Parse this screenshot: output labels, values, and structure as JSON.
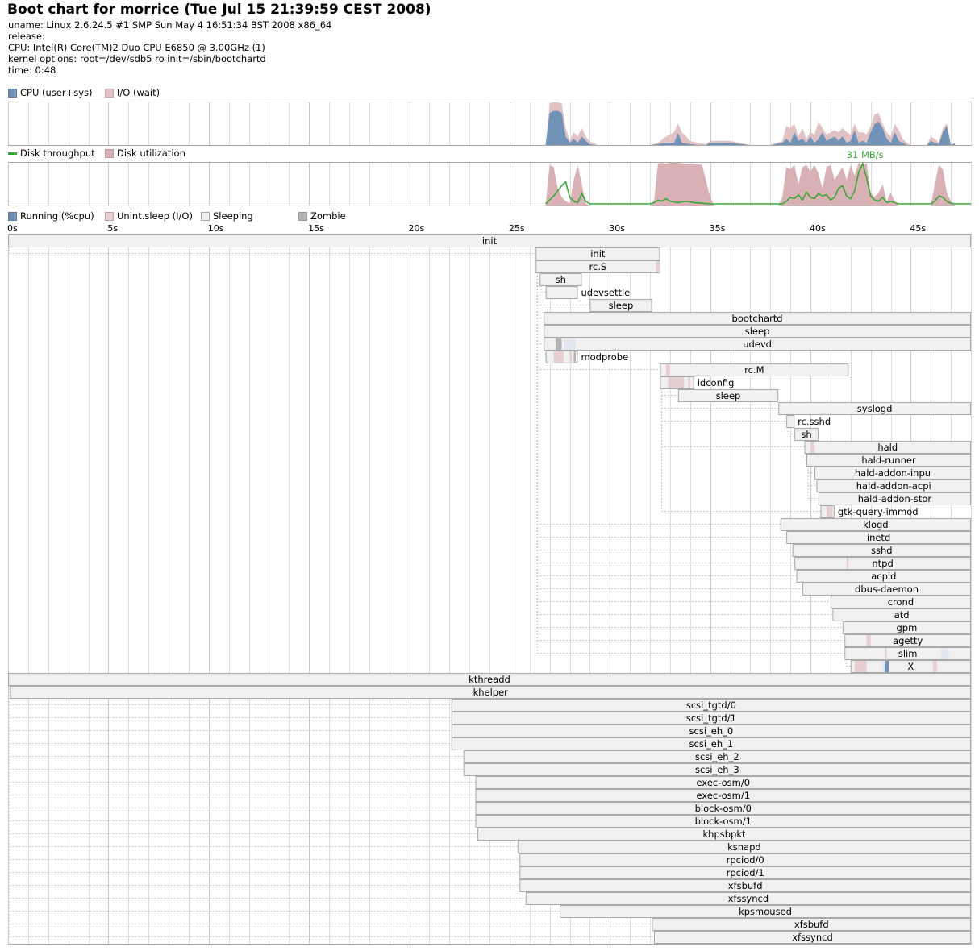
{
  "header": {
    "title": "Boot chart for morrice (Tue Jul 15 21:39:59 CEST 2008)",
    "uname": "uname: Linux 2.6.24.5 #1 SMP Sun May 4 16:51:34 BST 2008 x86_64",
    "release": "release:",
    "cpu": "CPU: Intel(R) Core(TM)2 Duo CPU     E6850  @ 3.00GHz (1)",
    "kernel": "kernel options: root=/dev/sdb5 ro init=/sbin/bootchartd",
    "time": "time: 0:48"
  },
  "colors": {
    "cpu": "#7193b8",
    "io": "#e1c2c4",
    "disk_util": "#d9b1b4",
    "disk_throughput": "#3aa83a",
    "running": "#6f8fb5",
    "unint": "#e6cfd1",
    "sleeping": "#f0f0f0",
    "zombie": "#b4b4b4",
    "border": "#a8a8a8",
    "grid": "#dcdcdc"
  },
  "legends": {
    "cpu": "CPU (user+sys)",
    "io": "I/O (wait)",
    "throughput": "Disk throughput",
    "utilization": "Disk utilization",
    "running": "Running (%cpu)",
    "unint": "Unint.sleep (I/O)",
    "sleeping": "Sleeping",
    "zombie": "Zombie"
  },
  "chart_data": {
    "type": "area",
    "x_range_s": [
      0,
      48
    ],
    "ticks": [
      "0s",
      "5s",
      "10s",
      "15s",
      "20s",
      "25s",
      "30s",
      "35s",
      "40s",
      "45s"
    ],
    "tick_values": [
      0,
      5,
      10,
      15,
      20,
      25,
      30,
      35,
      40,
      45
    ],
    "cpu": {
      "x": [
        26.8,
        27.0,
        27.2,
        27.4,
        27.6,
        27.8,
        28.0,
        28.2,
        28.4,
        28.6,
        28.8,
        29.0,
        29.2,
        29.4,
        29.6,
        29.8,
        30.0,
        31.0,
        32.0,
        32.4,
        32.8,
        33.2,
        33.4,
        33.6,
        34.0,
        34.4,
        34.8,
        35.0,
        36.0,
        37.0,
        37.2,
        37.6,
        38.0,
        38.6,
        38.8,
        39.0,
        39.2,
        39.4,
        39.6,
        39.8,
        40.0,
        40.2,
        40.4,
        40.6,
        40.8,
        41.0,
        41.2,
        41.4,
        41.6,
        41.8,
        42.0,
        42.2,
        42.4,
        42.6,
        42.8,
        43.0,
        43.2,
        43.4,
        43.6,
        43.8,
        44.0,
        44.2,
        44.4,
        44.6,
        44.8,
        45.0,
        45.2,
        45.4,
        45.6,
        45.8,
        46.0,
        46.2,
        46.4,
        46.6,
        46.8,
        47.0,
        47.2
      ],
      "user_sys": [
        0,
        0.75,
        0.8,
        0.8,
        0.75,
        0.2,
        0.05,
        0.15,
        0.05,
        0.2,
        0.1,
        0.02,
        0,
        0,
        0,
        0,
        0,
        0,
        0,
        0.02,
        0.05,
        0.05,
        0.28,
        0.05,
        0.02,
        0,
        0,
        0.05,
        0.05,
        0,
        0,
        0,
        0,
        0.05,
        0.15,
        0.05,
        0.3,
        0.1,
        0.15,
        0.05,
        0.2,
        0.05,
        0.15,
        0.3,
        0.1,
        0.15,
        0.2,
        0.1,
        0.2,
        0.05,
        0.1,
        0.35,
        0.05,
        0.1,
        0.05,
        0.3,
        0.5,
        0.55,
        0.4,
        0.15,
        0.05,
        0.3,
        0.1,
        0.05,
        0,
        0,
        0,
        0,
        0,
        0,
        0.1,
        0.05,
        0.02,
        0.3,
        0.45,
        0,
        0.04
      ],
      "io_wait": [
        0,
        0.98,
        1,
        1,
        0.98,
        0.4,
        0.1,
        0.3,
        0.2,
        0.4,
        0.2,
        0.08,
        0.05,
        0,
        0,
        0,
        0,
        0,
        0,
        0.05,
        0.2,
        0.3,
        0.5,
        0.3,
        0.1,
        0.05,
        0.02,
        0.1,
        0.1,
        0,
        0,
        0,
        0,
        0.1,
        0.45,
        0.4,
        0.5,
        0.2,
        0.4,
        0.15,
        0.3,
        0.25,
        0.55,
        0.4,
        0.25,
        0.3,
        0.35,
        0.3,
        0.4,
        0.3,
        0.25,
        0.5,
        0.3,
        0.3,
        0.25,
        0.45,
        0.72,
        0.75,
        0.5,
        0.3,
        0.2,
        0.5,
        0.35,
        0.15,
        0.05,
        0,
        0,
        0,
        0,
        0,
        0.2,
        0.15,
        0.05,
        0.4,
        0.5,
        0,
        0.05
      ]
    },
    "disk": {
      "max_label": "31 MB/s",
      "max_x": 42.6,
      "x": [
        26.8,
        27.0,
        27.2,
        27.4,
        27.6,
        27.8,
        28.0,
        28.2,
        28.4,
        28.6,
        28.8,
        29.0,
        29.2,
        29.4,
        29.6,
        29.8,
        30.0,
        31.0,
        32.0,
        32.2,
        32.4,
        32.6,
        32.8,
        33.0,
        33.4,
        33.8,
        34.2,
        34.6,
        35.0,
        35.2,
        36.0,
        38.4,
        38.6,
        38.8,
        39.0,
        39.2,
        39.4,
        39.6,
        39.8,
        40.0,
        40.2,
        40.4,
        40.6,
        40.8,
        41.0,
        41.2,
        41.4,
        41.6,
        41.8,
        42.0,
        42.2,
        42.4,
        42.6,
        42.8,
        43.0,
        43.2,
        43.4,
        43.6,
        43.8,
        44.0,
        44.2,
        44.4,
        44.6,
        44.8,
        45.0,
        46.0,
        46.2,
        46.4,
        46.6,
        46.8,
        47.0,
        47.2,
        48.0
      ],
      "utilization": [
        0,
        0.95,
        0.9,
        0.4,
        0.2,
        0.1,
        0.05,
        0.6,
        0.95,
        0.5,
        0.05,
        0,
        0,
        0,
        0,
        0,
        0,
        0,
        0,
        0.1,
        0.98,
        1,
        0.98,
        1,
        1,
        0.98,
        0.98,
        0.95,
        0.2,
        0,
        0,
        0,
        0.2,
        0.9,
        0.85,
        0.95,
        0.5,
        0.9,
        0.95,
        0.8,
        0.95,
        0.75,
        0.4,
        0.9,
        0.95,
        0.6,
        0.75,
        0.9,
        0.6,
        0.95,
        0.7,
        1,
        0.9,
        1,
        0.3,
        0.2,
        0.3,
        0.5,
        0.1,
        0.3,
        0.1,
        0,
        0,
        0,
        0,
        0,
        0.5,
        0.95,
        0.85,
        0.3,
        0.1,
        0,
        0
      ],
      "throughput_mbs": [
        0,
        3,
        6,
        10,
        14,
        17,
        5,
        2,
        1,
        8,
        2,
        0,
        0,
        0,
        0,
        0,
        0,
        0,
        0,
        1,
        3,
        2,
        4,
        2,
        1,
        2,
        1,
        0.5,
        0,
        0,
        0,
        0,
        0,
        2,
        5,
        4,
        7,
        3,
        9,
        5,
        4,
        8,
        6,
        7,
        3,
        5,
        12,
        14,
        6,
        4,
        10,
        24,
        31,
        20,
        6,
        3,
        2,
        5,
        1,
        2,
        1,
        0,
        0,
        0,
        0,
        0,
        2,
        6,
        5,
        2,
        0.5,
        0,
        0
      ]
    },
    "processes": [
      {
        "name": "init",
        "start": 0,
        "end": 48,
        "sleep": true,
        "label": "center"
      },
      {
        "name": "init",
        "start": 26.3,
        "end": 32.5,
        "parent": "init",
        "label": "center"
      },
      {
        "name": "rc.S",
        "start": 26.3,
        "end": 32.5,
        "parent": "init",
        "label": "center",
        "io": [
          [
            32.3,
            32.5
          ]
        ]
      },
      {
        "name": "sh",
        "start": 26.5,
        "end": 28.6,
        "parent": "rc.S",
        "label": "center"
      },
      {
        "name": "udevsettle",
        "start": 26.8,
        "end": 28.4,
        "parent": "sh",
        "label": "right"
      },
      {
        "name": "sleep",
        "start": 29.0,
        "end": 32.1,
        "parent": "rc.S",
        "label": "center"
      },
      {
        "name": "bootchartd",
        "start": 26.7,
        "end": 48,
        "parent": "init",
        "label": "center"
      },
      {
        "name": "sleep",
        "start": 26.7,
        "end": 48,
        "parent": "bootchartd",
        "label": "center"
      },
      {
        "name": "udevd",
        "start": 26.7,
        "end": 48,
        "parent": "init",
        "label": "center",
        "zombie": [
          [
            27.3,
            27.6
          ]
        ],
        "sleepmark": [
          [
            27.7,
            28.3
          ]
        ]
      },
      {
        "name": "modprobe",
        "start": 26.8,
        "end": 28.4,
        "parent": "udevd",
        "label": "right",
        "io": [
          [
            27.2,
            27.7
          ],
          [
            28.0,
            28.1
          ]
        ],
        "zombie": [
          [
            28.2,
            28.3
          ]
        ]
      },
      {
        "name": "rc.M",
        "start": 32.5,
        "end": 41.9,
        "parent": "init",
        "label": "center",
        "io": [
          [
            32.8,
            33.0
          ]
        ]
      },
      {
        "name": "ldconfig",
        "start": 32.5,
        "end": 34.2,
        "parent": "rc.M",
        "label": "right",
        "io": [
          [
            32.9,
            33.7
          ],
          [
            33.9,
            34.0
          ]
        ]
      },
      {
        "name": "sleep",
        "start": 33.4,
        "end": 38.4,
        "parent": "rc.M",
        "label": "center"
      },
      {
        "name": "syslogd",
        "start": 38.4,
        "end": 48,
        "parent": "rc.M",
        "label": "center"
      },
      {
        "name": "rc.sshd",
        "start": 38.8,
        "end": 39.2,
        "parent": "rc.M",
        "label": "right"
      },
      {
        "name": "sh",
        "start": 39.2,
        "end": 40.4,
        "parent": "rc.sshd",
        "label": "center"
      },
      {
        "name": "hald",
        "start": 39.7,
        "end": 48,
        "parent": "rc.M",
        "label": "center",
        "io": [
          [
            40.0,
            40.2
          ]
        ]
      },
      {
        "name": "hald-runner",
        "start": 39.8,
        "end": 48,
        "parent": "hald",
        "label": "center"
      },
      {
        "name": "hald-addon-inpu",
        "start": 40.2,
        "end": 48,
        "parent": "hald-runner",
        "label": "center"
      },
      {
        "name": "hald-addon-acpi",
        "start": 40.3,
        "end": 48,
        "parent": "hald-runner",
        "label": "center"
      },
      {
        "name": "hald-addon-stor",
        "start": 40.4,
        "end": 48,
        "parent": "hald-runner",
        "label": "center"
      },
      {
        "name": "gtk-query-immod",
        "start": 40.5,
        "end": 41.2,
        "parent": "rc.M",
        "label": "right",
        "io": [
          [
            40.8,
            41.1
          ]
        ]
      },
      {
        "name": "klogd",
        "start": 38.5,
        "end": 48,
        "parent": "init",
        "label": "center"
      },
      {
        "name": "inetd",
        "start": 38.8,
        "end": 48,
        "parent": "init",
        "label": "center"
      },
      {
        "name": "sshd",
        "start": 39.1,
        "end": 48,
        "parent": "init",
        "label": "center"
      },
      {
        "name": "ntpd",
        "start": 39.2,
        "end": 48,
        "parent": "init",
        "label": "center",
        "io": [
          [
            41.8,
            41.9
          ]
        ]
      },
      {
        "name": "acpid",
        "start": 39.3,
        "end": 48,
        "parent": "init",
        "label": "center"
      },
      {
        "name": "dbus-daemon",
        "start": 39.6,
        "end": 48,
        "parent": "init",
        "label": "center"
      },
      {
        "name": "crond",
        "start": 41.0,
        "end": 48,
        "parent": "init",
        "label": "center"
      },
      {
        "name": "atd",
        "start": 41.1,
        "end": 48,
        "parent": "init",
        "label": "center"
      },
      {
        "name": "gpm",
        "start": 41.6,
        "end": 48,
        "parent": "init",
        "label": "center"
      },
      {
        "name": "agetty",
        "start": 41.7,
        "end": 48,
        "parent": "init",
        "label": "center",
        "io": [
          [
            42.8,
            43.0
          ]
        ]
      },
      {
        "name": "slim",
        "start": 41.7,
        "end": 48,
        "parent": "init",
        "label": "center",
        "io": [
          [
            43.7,
            43.8
          ]
        ],
        "sleepmark": [
          [
            46.5,
            46.9
          ]
        ]
      },
      {
        "name": "X",
        "start": 42.0,
        "end": 48,
        "parent": "slim",
        "label": "center",
        "io": [
          [
            42.2,
            42.8
          ],
          [
            46.1,
            46.3
          ]
        ],
        "running": [
          [
            43.7,
            43.9
          ]
        ],
        "sleepmark": [
          [
            43.6,
            43.7
          ]
        ]
      },
      {
        "name": "kthreadd",
        "start": 0,
        "end": 48,
        "label": "center"
      },
      {
        "name": "khelper",
        "start": 0.1,
        "end": 48,
        "parent": "kthreadd",
        "label": "center"
      },
      {
        "name": "scsi_tgtd/0",
        "start": 22.1,
        "end": 48,
        "parent": "kthreadd",
        "label": "center"
      },
      {
        "name": "scsi_tgtd/1",
        "start": 22.1,
        "end": 48,
        "parent": "kthreadd",
        "label": "center"
      },
      {
        "name": "scsi_eh_0",
        "start": 22.1,
        "end": 48,
        "parent": "kthreadd",
        "label": "center"
      },
      {
        "name": "scsi_eh_1",
        "start": 22.1,
        "end": 48,
        "parent": "kthreadd",
        "label": "center"
      },
      {
        "name": "scsi_eh_2",
        "start": 22.7,
        "end": 48,
        "parent": "kthreadd",
        "label": "center"
      },
      {
        "name": "scsi_eh_3",
        "start": 22.7,
        "end": 48,
        "parent": "kthreadd",
        "label": "center"
      },
      {
        "name": "exec-osm/0",
        "start": 23.3,
        "end": 48,
        "parent": "kthreadd",
        "label": "center"
      },
      {
        "name": "exec-osm/1",
        "start": 23.3,
        "end": 48,
        "parent": "kthreadd",
        "label": "center"
      },
      {
        "name": "block-osm/0",
        "start": 23.3,
        "end": 48,
        "parent": "kthreadd",
        "label": "center"
      },
      {
        "name": "block-osm/1",
        "start": 23.3,
        "end": 48,
        "parent": "kthreadd",
        "label": "center"
      },
      {
        "name": "khpsbpkt",
        "start": 23.4,
        "end": 48,
        "parent": "kthreadd",
        "label": "center"
      },
      {
        "name": "ksnapd",
        "start": 25.4,
        "end": 48,
        "parent": "kthreadd",
        "label": "center"
      },
      {
        "name": "rpciod/0",
        "start": 25.5,
        "end": 48,
        "parent": "kthreadd",
        "label": "center"
      },
      {
        "name": "rpciod/1",
        "start": 25.5,
        "end": 48,
        "parent": "kthreadd",
        "label": "center"
      },
      {
        "name": "xfsbufd",
        "start": 25.5,
        "end": 48,
        "parent": "kthreadd",
        "label": "center"
      },
      {
        "name": "xfssyncd",
        "start": 25.8,
        "end": 48,
        "parent": "kthreadd",
        "label": "center"
      },
      {
        "name": "kpsmoused",
        "start": 27.5,
        "end": 48,
        "parent": "kthreadd",
        "label": "center"
      },
      {
        "name": "xfsbufd",
        "start": 32.1,
        "end": 48,
        "parent": "kthreadd",
        "label": "center"
      },
      {
        "name": "xfssyncd",
        "start": 32.2,
        "end": 48,
        "parent": "kthreadd",
        "label": "center"
      }
    ]
  }
}
